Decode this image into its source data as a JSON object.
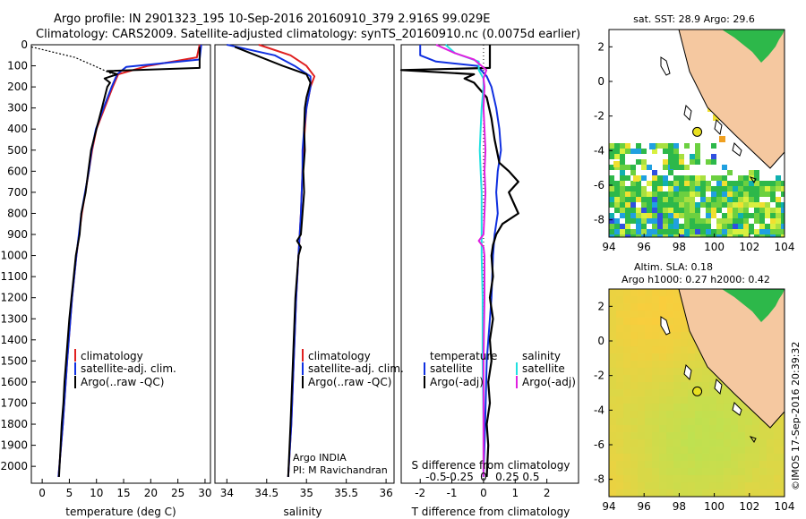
{
  "title": {
    "line1": "Argo profile: IN 2901323_195 10-Sep-2016 20160910_379 2.916S 99.029E",
    "line2": "Climatology: CARS2009. Satellite-adjusted climatology: synTS_20160910.nc (0.0075d earlier)"
  },
  "colors": {
    "climatology": "#e02020",
    "satellite": "#1030e0",
    "argo": "#000000",
    "satellite_salinity": "#20e0e0",
    "argo_salinity": "#e020e0",
    "land": "#f5c8a0"
  },
  "chart_data": [
    {
      "type": "line",
      "id": "temperature",
      "xlabel": "temperature (deg C)",
      "ylabel": "",
      "xlim": [
        -2,
        31
      ],
      "ylim": [
        2080,
        0
      ],
      "xticks": [
        "0",
        "5",
        "10",
        "15",
        "20",
        "25",
        "30"
      ],
      "xtick_values": [
        0,
        5,
        10,
        15,
        20,
        25,
        30
      ],
      "yticks": [
        "0",
        "100",
        "200",
        "300",
        "400",
        "500",
        "600",
        "700",
        "800",
        "900",
        "1000",
        "1100",
        "1200",
        "1300",
        "1400",
        "1500",
        "1600",
        "1700",
        "1800",
        "1900",
        "2000"
      ],
      "ytick_values": [
        0,
        100,
        200,
        300,
        400,
        500,
        600,
        700,
        800,
        900,
        1000,
        1100,
        1200,
        1300,
        1400,
        1500,
        1600,
        1700,
        1800,
        1900,
        2000
      ],
      "legend": [
        "climatology",
        "satellite-adj. clim.",
        "Argo(..raw -QC)"
      ],
      "series": [
        {
          "name": "climatology",
          "color": "#e02020",
          "width": 2,
          "depth": [
            0,
            60,
            100,
            140,
            200,
            300,
            400,
            500,
            600,
            800,
            1000,
            1200,
            1500,
            1800,
            2050
          ],
          "values": [
            29.0,
            28.5,
            19.5,
            14.0,
            13.0,
            11.5,
            10.0,
            9.2,
            8.6,
            7.3,
            6.3,
            5.5,
            4.6,
            3.8,
            3.0
          ]
        },
        {
          "name": "satellite",
          "color": "#1030e0",
          "width": 2,
          "depth": [
            0,
            70,
            105,
            140,
            200,
            300,
            400,
            500,
            600,
            800,
            1000,
            1200,
            1500,
            1800,
            2050
          ],
          "values": [
            29.3,
            29.0,
            15.5,
            13.8,
            12.8,
            11.3,
            9.9,
            9.1,
            8.6,
            7.2,
            6.3,
            5.5,
            4.6,
            3.8,
            3.0
          ]
        },
        {
          "name": "Argo",
          "color": "#000000",
          "width": 2,
          "depth": [
            10,
            110,
            125,
            140,
            160,
            180,
            200,
            250,
            300,
            400,
            500,
            600,
            700,
            800,
            900,
            1000,
            1100,
            1200,
            1300,
            1400,
            1500,
            1600,
            1700,
            1800,
            1900,
            2050
          ],
          "values": [
            29.0,
            29.0,
            12.0,
            13.8,
            11.5,
            12.5,
            12.0,
            11.5,
            11.0,
            10.0,
            9.0,
            8.5,
            8.0,
            7.2,
            6.9,
            6.2,
            5.8,
            5.4,
            5.0,
            4.7,
            4.4,
            4.1,
            3.9,
            3.6,
            3.4,
            3.1
          ]
        },
        {
          "name": "mixed-layer",
          "color": "#000000",
          "width": 1.2,
          "dash": true,
          "depth": [
            10,
            60,
            100,
            140
          ],
          "values": [
            -2.0,
            6.0,
            9.6,
            13.0
          ]
        }
      ]
    },
    {
      "type": "line",
      "id": "salinity",
      "xlabel": "salinity",
      "xlim": [
        33.85,
        36.1
      ],
      "ylim": [
        2080,
        0
      ],
      "xticks": [
        "34",
        "34.5",
        "35",
        "35.5",
        "36"
      ],
      "xtick_values": [
        34,
        34.5,
        35,
        35.5,
        36
      ],
      "legend": [
        "climatology",
        "satellite-adj. clim.",
        "Argo(..raw -QC)"
      ],
      "annotation": [
        "Argo INDIA",
        "PI: M Ravichandran"
      ],
      "series": [
        {
          "name": "climatology",
          "color": "#e02020",
          "width": 2,
          "depth": [
            0,
            50,
            100,
            150,
            200,
            300,
            400,
            500,
            600,
            800,
            1000,
            1200,
            1500,
            1800,
            2050
          ],
          "values": [
            34.4,
            34.8,
            35.0,
            35.1,
            35.05,
            35.0,
            34.98,
            34.96,
            34.95,
            34.93,
            34.9,
            34.87,
            34.84,
            34.81,
            34.77
          ]
        },
        {
          "name": "satellite",
          "color": "#1030e0",
          "width": 2,
          "depth": [
            0,
            50,
            100,
            150,
            200,
            300,
            400,
            500,
            600,
            800,
            1000,
            1200,
            1500,
            1800,
            2050
          ],
          "values": [
            34.0,
            34.6,
            34.85,
            35.05,
            35.05,
            35.0,
            34.97,
            34.95,
            34.95,
            34.93,
            34.9,
            34.87,
            34.84,
            34.81,
            34.77
          ]
        },
        {
          "name": "Argo",
          "color": "#000000",
          "width": 2,
          "depth": [
            10,
            100,
            140,
            180,
            250,
            300,
            400,
            500,
            600,
            700,
            800,
            900,
            930,
            960,
            1000,
            1200,
            1500,
            1800,
            2050
          ],
          "values": [
            34.1,
            34.7,
            35.0,
            35.05,
            35.0,
            34.98,
            34.97,
            34.98,
            34.96,
            34.97,
            34.95,
            34.93,
            34.88,
            34.93,
            34.9,
            34.86,
            34.83,
            34.8,
            34.77
          ]
        }
      ]
    },
    {
      "type": "line",
      "id": "difference",
      "xlabel": "T difference from climatology",
      "xlabel_top": "S difference from climatology",
      "xlim": [
        -2.6,
        3.0
      ],
      "ylim": [
        2080,
        0
      ],
      "xticks": [
        "-2",
        "-1",
        "0",
        "1",
        "2"
      ],
      "xtick_values": [
        -2,
        -1,
        0,
        1,
        2
      ],
      "sticks": [
        "-0.5",
        "-0.25",
        "0",
        "0.25",
        "0.5"
      ],
      "stick_values": [
        -0.5,
        -0.25,
        0,
        0.25,
        0.5
      ],
      "legend_left_title": "temperature",
      "legend_left": [
        "satellite",
        "Argo(-adj)"
      ],
      "legend_right_title": "salinity",
      "legend_right": [
        "satellite",
        "Argo(-adj)"
      ],
      "series": [
        {
          "name": "T satellite",
          "color": "#1030e0",
          "width": 2,
          "depth": [
            0,
            50,
            80,
            100,
            150,
            200,
            300,
            400,
            500,
            600,
            700,
            800,
            900,
            1000,
            1200,
            1500,
            1800,
            2050
          ],
          "values": [
            -2.0,
            -2.0,
            -1.5,
            -0.2,
            0.1,
            0.25,
            0.4,
            0.5,
            0.55,
            0.45,
            0.4,
            0.45,
            0.35,
            0.3,
            0.25,
            0.1,
            0.05,
            0.0
          ]
        },
        {
          "name": "T Argo",
          "color": "#000000",
          "width": 2.2,
          "depth": [
            0,
            110,
            120,
            140,
            160,
            180,
            250,
            350,
            450,
            560,
            600,
            650,
            700,
            800,
            850,
            900,
            950,
            1000,
            1100,
            1200,
            1300,
            1400,
            1500,
            1600,
            1700,
            1800,
            1900,
            2050
          ],
          "values": [
            0.2,
            0.2,
            -2.6,
            -0.3,
            -0.6,
            -0.3,
            0.1,
            0.25,
            0.35,
            0.5,
            0.8,
            1.1,
            0.8,
            1.1,
            0.6,
            0.4,
            0.3,
            0.25,
            0.3,
            0.2,
            0.3,
            0.2,
            0.25,
            0.15,
            0.2,
            0.1,
            0.15,
            0.1
          ]
        },
        {
          "name": "S satellite",
          "color": "#20e0e0",
          "width": 2,
          "depth": [
            0,
            40,
            80,
            120,
            160,
            200,
            300,
            400,
            500,
            600,
            700,
            800,
            900,
            1000,
            1200,
            1500,
            1800,
            2050
          ],
          "values": [
            -0.4,
            -0.3,
            -0.05,
            -0.05,
            0.0,
            0.0,
            -0.02,
            -0.03,
            -0.04,
            -0.03,
            -0.02,
            -0.02,
            -0.02,
            -0.02,
            -0.01,
            -0.01,
            0.0,
            0.0
          ]
        },
        {
          "name": "S Argo",
          "color": "#e020e0",
          "width": 2,
          "depth": [
            0,
            40,
            70,
            120,
            160,
            200,
            300,
            400,
            500,
            600,
            700,
            800,
            900,
            930,
            960,
            1000,
            1200,
            1500,
            1800,
            2050
          ],
          "values": [
            -0.5,
            -0.3,
            -0.1,
            0.03,
            0.0,
            0.01,
            0.0,
            0.01,
            0.02,
            0.01,
            0.02,
            0.01,
            0.0,
            -0.05,
            0.0,
            0.01,
            0.01,
            0.0,
            0.0,
            0.0
          ]
        }
      ]
    },
    {
      "type": "heatmap",
      "id": "sst-map",
      "title": "sat. SST: 28.9  Argo: 29.6",
      "xlim": [
        94,
        104
      ],
      "ylim": [
        -9,
        3
      ],
      "xticks": [
        "94",
        "96",
        "98",
        "100",
        "102",
        "104"
      ],
      "xtick_values": [
        94,
        96,
        98,
        100,
        102,
        104
      ],
      "yticks": [
        "2",
        "0",
        "-2",
        "-4",
        "-6",
        "-8"
      ],
      "ytick_values": [
        2,
        0,
        -2,
        -4,
        -6,
        -8
      ],
      "float_position": [
        99.029,
        -2.916
      ]
    },
    {
      "type": "heatmap",
      "id": "sla-map",
      "title_line1": "Altim. SLA: 0.18",
      "title_line2": "Argo h1000: 0.27 h2000: 0.42",
      "xlim": [
        94,
        104
      ],
      "ylim": [
        -9,
        3
      ],
      "xticks": [
        "94",
        "96",
        "98",
        "100",
        "102",
        "104"
      ],
      "xtick_values": [
        94,
        96,
        98,
        100,
        102,
        104
      ],
      "yticks": [
        "2",
        "0",
        "-2",
        "-4",
        "-6",
        "-8"
      ],
      "ytick_values": [
        2,
        0,
        -2,
        -4,
        -6,
        -8
      ],
      "float_position": [
        99.029,
        -2.916
      ]
    }
  ],
  "side_label": "©IMOS 17-Sep-2016 20:39:32"
}
